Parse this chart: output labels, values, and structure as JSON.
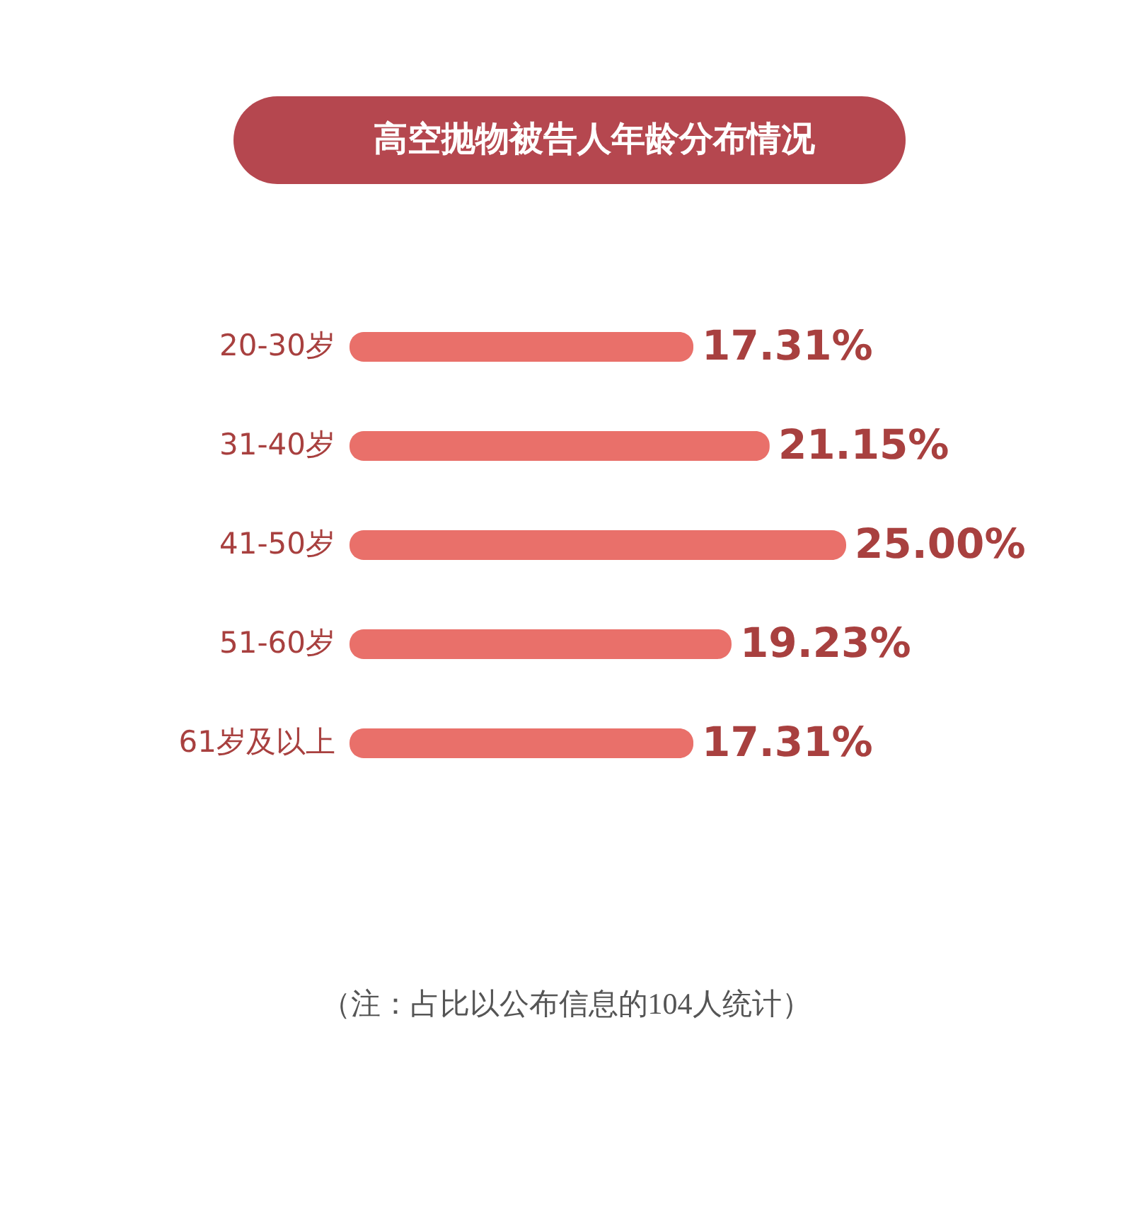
{
  "chart_data": {
    "type": "bar",
    "orientation": "horizontal",
    "title": "高空抛物被告人年龄分布情况",
    "categories": [
      "20-30岁",
      "31-40岁",
      "41-50岁",
      "51-60岁",
      "61岁及以上"
    ],
    "values": [
      17.31,
      21.15,
      25.0,
      19.23,
      17.31
    ],
    "value_labels": [
      "17.31%",
      "21.15%",
      "25.00%",
      "19.23%",
      "17.31%"
    ],
    "color": "#e9706a",
    "annotations": [
      "（注：占比以公布信息的104人统计）"
    ]
  }
}
